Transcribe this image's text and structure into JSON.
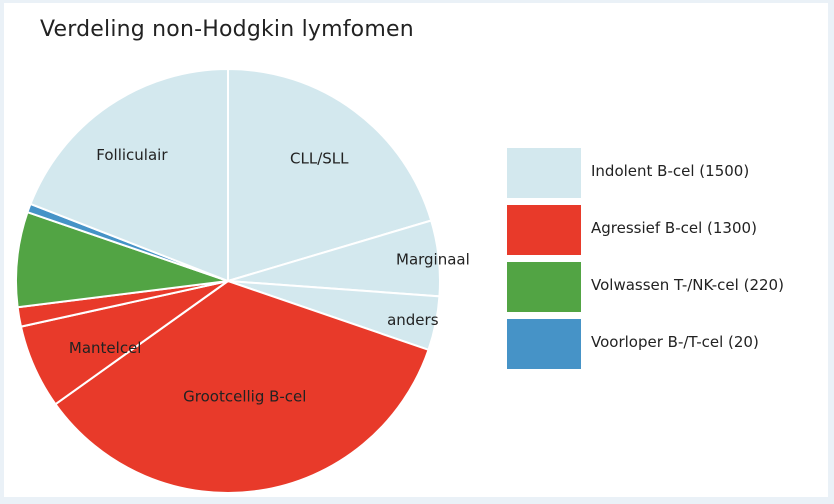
{
  "chart_data": {
    "type": "pie",
    "title": "Verdeling non-Hodgkin lymfomen",
    "groups": [
      {
        "name": "Indolent B-cel (1500)",
        "value": 1500,
        "color": "#d3e8ee"
      },
      {
        "name": "Agressief B-cel (1300)",
        "value": 1300,
        "color": "#e83a2a"
      },
      {
        "name": "Volwassen T-/NK-cel (220)",
        "value": 220,
        "color": "#52a444"
      },
      {
        "name": "Voorloper B-/T-cel (20)",
        "value": 20,
        "color": "#4693c7"
      }
    ],
    "slices": [
      {
        "label": "CLL/SLL",
        "value": 620,
        "group": 0
      },
      {
        "label": "Marginaal",
        "value": 175,
        "group": 0
      },
      {
        "label": "anders",
        "value": 125,
        "group": 0
      },
      {
        "label": "Grootcellig B-cel",
        "value": 1060,
        "group": 1
      },
      {
        "label": "Mantelcel",
        "value": 195,
        "group": 1
      },
      {
        "label": "",
        "value": 45,
        "group": 1
      },
      {
        "label": "",
        "value": 220,
        "group": 2
      },
      {
        "label": "",
        "value": 20,
        "group": 3
      },
      {
        "label": "Folliculair",
        "value": 580,
        "group": 0
      }
    ],
    "start_angle_deg": 0,
    "direction": "clockwise",
    "legend_position": "right"
  }
}
